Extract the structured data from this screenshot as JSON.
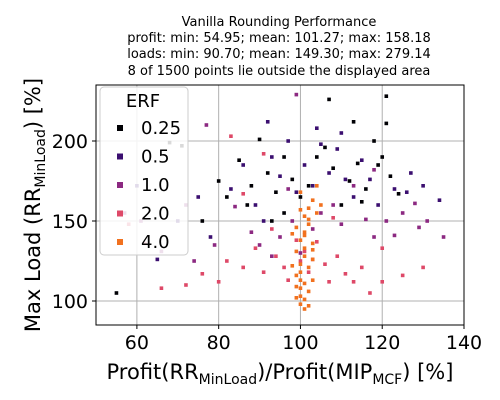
{
  "chart_data": {
    "type": "scatter",
    "title_lines": [
      "Vanilla Rounding Performance",
      "profit: min: 54.95; mean: 101.27; max: 158.18",
      "loads: min: 90.70; mean: 149.30; max: 279.14",
      "8 of 1500 points lie outside the displayed area"
    ],
    "xlabel": {
      "main": "Profit(RR",
      "sub1": "MinLoad",
      "mid": ")/Profit(MIP",
      "sub2": "MCF",
      "end": ") [%]"
    },
    "ylabel": {
      "main": "Max Load (RR",
      "sub": "MinLoad",
      "end": ") [%]"
    },
    "xlim": [
      50,
      140
    ],
    "ylim": [
      85,
      235
    ],
    "xticks": [
      "60",
      "80",
      "100",
      "120",
      "140"
    ],
    "yticks": [
      "100",
      "150",
      "200"
    ],
    "grid": true,
    "legend": {
      "title": "ERF",
      "position": "top-left"
    },
    "series": [
      {
        "name": "0.25",
        "color": "#000004",
        "points": [
          [
            55,
            105
          ],
          [
            68,
            199
          ],
          [
            71,
            197
          ],
          [
            80,
            175
          ],
          [
            82,
            165
          ],
          [
            85,
            188
          ],
          [
            88,
            172
          ],
          [
            90,
            201
          ],
          [
            92,
            180
          ],
          [
            94,
            168
          ],
          [
            96,
            190
          ],
          [
            98,
            176
          ],
          [
            100,
            165
          ],
          [
            102,
            172
          ],
          [
            104,
            190
          ],
          [
            106,
            196
          ],
          [
            108,
            183
          ],
          [
            110,
            160
          ],
          [
            112,
            175
          ],
          [
            114,
            186
          ],
          [
            116,
            170
          ],
          [
            118,
            200
          ],
          [
            120,
            190
          ],
          [
            121,
            228
          ],
          [
            122,
            178
          ],
          [
            124,
            167
          ],
          [
            107,
            226
          ],
          [
            113,
            212
          ],
          [
            121,
            211
          ],
          [
            96,
            155
          ],
          [
            93,
            150
          ],
          [
            87,
            160
          ],
          [
            76,
            150
          ],
          [
            115,
            162
          ],
          [
            119,
            185
          ]
        ]
      },
      {
        "name": "0.5",
        "color": "#3b0f70",
        "points": [
          [
            60,
            172
          ],
          [
            65,
            126
          ],
          [
            70,
            150
          ],
          [
            75,
            165
          ],
          [
            78,
            140
          ],
          [
            83,
            170
          ],
          [
            86,
            185
          ],
          [
            89,
            160
          ],
          [
            91,
            150
          ],
          [
            93,
            190
          ],
          [
            95,
            178
          ],
          [
            97,
            200
          ],
          [
            99,
            168
          ],
          [
            101,
            185
          ],
          [
            103,
            172
          ],
          [
            105,
            198
          ],
          [
            107,
            180
          ],
          [
            109,
            195
          ],
          [
            111,
            176
          ],
          [
            113,
            165
          ],
          [
            115,
            188
          ],
          [
            117,
            176
          ],
          [
            119,
            160
          ],
          [
            123,
            170
          ],
          [
            127,
            180
          ],
          [
            130,
            172
          ],
          [
            134,
            163
          ],
          [
            110,
            205
          ],
          [
            104,
            208
          ],
          [
            92,
            212
          ],
          [
            126,
            168
          ]
        ]
      },
      {
        "name": "1.0",
        "color": "#8c2981",
        "points": [
          [
            57,
            155
          ],
          [
            61,
            150
          ],
          [
            66,
            131
          ],
          [
            72,
            160
          ],
          [
            74,
            125
          ],
          [
            79,
            135
          ],
          [
            84,
            159
          ],
          [
            88,
            143
          ],
          [
            90,
            135
          ],
          [
            93,
            128
          ],
          [
            95,
            140
          ],
          [
            98,
            150
          ],
          [
            100,
            130
          ],
          [
            103,
            145
          ],
          [
            105,
            155
          ],
          [
            108,
            160
          ],
          [
            110,
            148
          ],
          [
            113,
            172
          ],
          [
            116,
            151
          ],
          [
            118,
            140
          ],
          [
            121,
            150
          ],
          [
            123,
            141
          ],
          [
            125,
            155
          ],
          [
            128,
            161
          ],
          [
            131,
            150
          ],
          [
            135,
            140
          ],
          [
            99,
            229
          ],
          [
            118,
            182
          ],
          [
            129,
            146
          ],
          [
            77,
            210
          ],
          [
            97,
            170
          ]
        ]
      },
      {
        "name": "2.0",
        "color": "#de4968",
        "points": [
          [
            58,
            148
          ],
          [
            62,
            136
          ],
          [
            66,
            108
          ],
          [
            72,
            110
          ],
          [
            76,
            117
          ],
          [
            80,
            112
          ],
          [
            82,
            125
          ],
          [
            86,
            121
          ],
          [
            89,
            133
          ],
          [
            91,
            118
          ],
          [
            94,
            128
          ],
          [
            96,
            121
          ],
          [
            97,
            113
          ],
          [
            99,
            138
          ],
          [
            100,
            125
          ],
          [
            101,
            131
          ],
          [
            102,
            118
          ],
          [
            103,
            126
          ],
          [
            104,
            137
          ],
          [
            106,
            123
          ],
          [
            107,
            112
          ],
          [
            109,
            128
          ],
          [
            111,
            117
          ],
          [
            113,
            112
          ],
          [
            115,
            121
          ],
          [
            117,
            105
          ],
          [
            120,
            112
          ],
          [
            125,
            116
          ],
          [
            130,
            121
          ],
          [
            83,
            203
          ],
          [
            91,
            192
          ],
          [
            120,
            133
          ],
          [
            108,
            152
          ],
          [
            93,
            145
          ],
          [
            86,
            167
          ]
        ]
      },
      {
        "name": "4.0",
        "color": "#f1711f",
        "points": [
          [
            100,
            98
          ],
          [
            100,
            103
          ],
          [
            100,
            108
          ],
          [
            100,
            113
          ],
          [
            100,
            118
          ],
          [
            100,
            123
          ],
          [
            101,
            128
          ],
          [
            101,
            133
          ],
          [
            100,
            138
          ],
          [
            101,
            143
          ],
          [
            102,
            148
          ],
          [
            101,
            153
          ],
          [
            102,
            158
          ],
          [
            103,
            163
          ],
          [
            100,
            168
          ],
          [
            104,
            172
          ],
          [
            99,
            102
          ],
          [
            101,
            101
          ],
          [
            102,
            106
          ],
          [
            101,
            111
          ],
          [
            99,
            116
          ],
          [
            102,
            121
          ],
          [
            103,
            126
          ],
          [
            99,
            131
          ],
          [
            103,
            136
          ],
          [
            101,
            141
          ],
          [
            99,
            146
          ],
          [
            102,
            151
          ],
          [
            104,
            155
          ],
          [
            98,
            122
          ],
          [
            103,
            113
          ],
          [
            99,
            109
          ],
          [
            102,
            97
          ],
          [
            101,
            95
          ],
          [
            103,
            132
          ],
          [
            98,
            142
          ],
          [
            105,
            160
          ],
          [
            100,
            157
          ]
        ]
      }
    ]
  }
}
